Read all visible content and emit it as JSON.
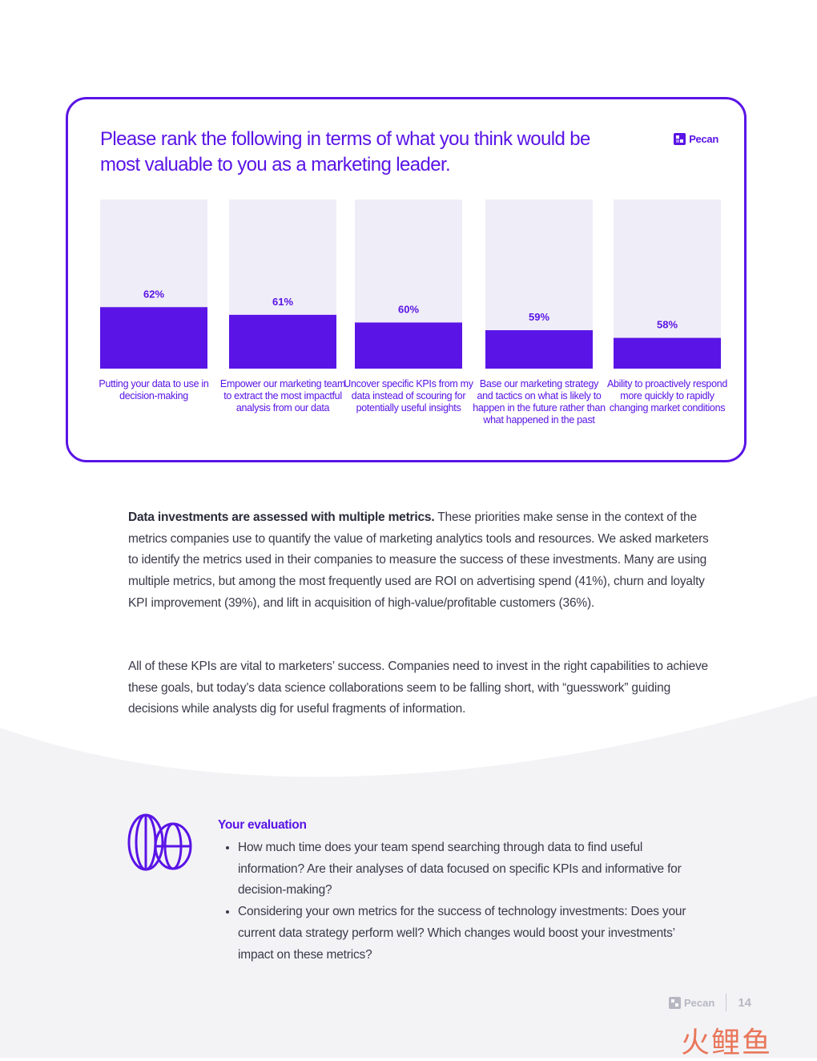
{
  "chart": {
    "title": "Please rank the following in terms of what you think would be most valuable to you as a marketing leader.",
    "brand": "Pecan",
    "colors": {
      "bar": "#5a14e6",
      "bar_bg": "#efedf8",
      "text": "#5a14e6"
    }
  },
  "chart_data": {
    "type": "bar",
    "categories": [
      "Putting your data to use in decision-making",
      "Empower our marketing team to extract the most impactful analysis from our data",
      "Uncover specific KPIs from my data instead of scouring for potentially useful insights",
      "Base our marketing strategy and tactics on what is likely to happen in the future rather than what happened in the past",
      "Ability to proactively respond more quickly to rapidly changing market conditions"
    ],
    "values": [
      62,
      61,
      60,
      59,
      58
    ],
    "value_labels": [
      "62%",
      "61%",
      "60%",
      "59%",
      "58%"
    ],
    "ylim": [
      0,
      100
    ],
    "title": "Please rank the following in terms of what you think would be most valuable to you as a marketing leader.",
    "xlabel": "",
    "ylabel": "",
    "grid": false
  },
  "body": {
    "p1_bold": "Data investments are assessed with multiple metrics.",
    "p1_rest": " These priorities make sense in the context of the metrics companies use to quantify the value of marketing analytics tools and resources. We asked marketers to identify the metrics used in their companies to measure the success of these investments. Many are using multiple metrics, but among the most frequently used are ROI on advertising spend (41%), churn and loyalty KPI improvement (39%), and lift in acquisition of high-value/profitable customers (36%).",
    "p2": "All of these KPIs are vital to marketers’ success. Companies need to invest in the right capabilities to achieve these goals, but today’s data science collaborations seem to be falling short, with “guesswork” guiding decisions while analysts dig for useful fragments of information."
  },
  "evaluation": {
    "icon": "globe-icon",
    "heading": "Your evaluation",
    "items": [
      "How much time does your team spend searching through data to find useful information? Are their analyses of data focused on specific KPIs and informative for decision-making?",
      "Considering your own metrics for the success of technology investments: Does your current data strategy perform well? Which changes would boost your investments’ impact on these metrics?"
    ]
  },
  "footer": {
    "brand": "Pecan",
    "page": "14",
    "watermark": "火鲤鱼"
  }
}
